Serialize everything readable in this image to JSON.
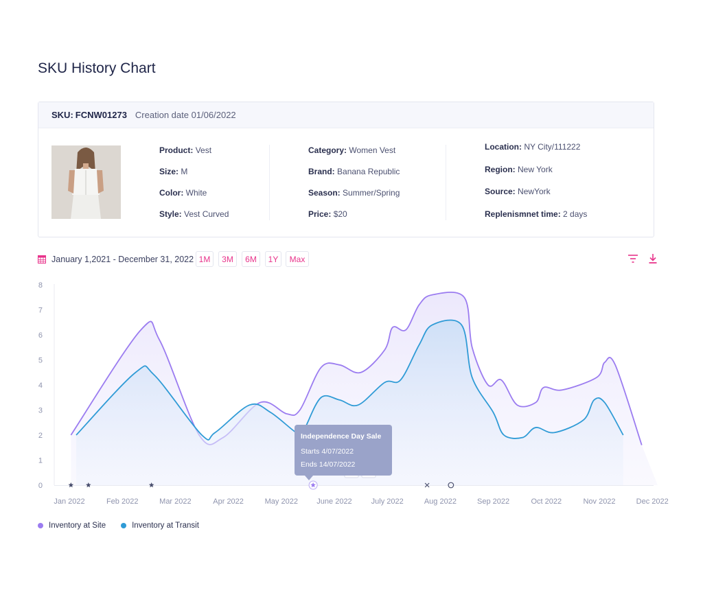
{
  "page": {
    "title": "SKU History Chart"
  },
  "sku": {
    "code_label": "SKU:",
    "code": "FCNW01273",
    "creation": "Creation date 01/06/2022",
    "details": {
      "col1": [
        {
          "label": "Product:",
          "value": "Vest"
        },
        {
          "label": "Size:",
          "value": "M"
        },
        {
          "label": "Color:",
          "value": "White"
        },
        {
          "label": "Style:",
          "value": "Vest Curved"
        }
      ],
      "col2": [
        {
          "label": "Category:",
          "value": "Women Vest"
        },
        {
          "label": "Brand:",
          "value": "Banana Republic"
        },
        {
          "label": "Season:",
          "value": "Summer/Spring"
        },
        {
          "label": "Price:",
          "value": "$20"
        }
      ],
      "col3": [
        {
          "label": "Location:",
          "value": "NY City/111222"
        },
        {
          "label": "Region:",
          "value": "New York"
        },
        {
          "label": "Source:",
          "value": "NewYork"
        },
        {
          "label": "Replenismnet time:",
          "value": "2 days"
        }
      ]
    }
  },
  "toolbar": {
    "date_range": "January 1,2021 - December 31, 2022",
    "ranges": [
      "1M",
      "3M",
      "6M",
      "1Y",
      "Max"
    ],
    "icons": {
      "calendar": "calendar-icon",
      "filter": "filter-icon",
      "download": "download-icon"
    }
  },
  "colors": {
    "site": "#9b7cf0",
    "transit": "#2f9bd6",
    "accent": "#e8338b",
    "tooltip_bg": "#9aa3c9"
  },
  "chart_data": {
    "type": "area",
    "x_ticks": [
      "Jan 2022",
      "Feb 2022",
      "Mar 2022",
      "Apr 2022",
      "May 2022",
      "June 2022",
      "July 2022",
      "Aug 2022",
      "Sep 2022",
      "Oct 2022",
      "Nov 2022",
      "Dec 2022"
    ],
    "y_ticks": [
      0,
      1,
      2,
      3,
      4,
      5,
      6,
      7,
      8
    ],
    "ylim": [
      0,
      8
    ],
    "series": [
      {
        "name": "Inventory at Site",
        "points": [
          [
            0.03,
            2.0
          ],
          [
            1.35,
            6.2
          ],
          [
            1.7,
            5.8
          ],
          [
            2.45,
            2.0
          ],
          [
            2.9,
            1.9
          ],
          [
            3.6,
            3.3
          ],
          [
            4.1,
            2.85
          ],
          [
            4.35,
            3.0
          ],
          [
            4.75,
            4.7
          ],
          [
            5.1,
            4.8
          ],
          [
            5.5,
            4.5
          ],
          [
            5.95,
            5.4
          ],
          [
            6.1,
            6.3
          ],
          [
            6.35,
            6.2
          ],
          [
            6.6,
            7.2
          ],
          [
            6.85,
            7.6
          ],
          [
            7.45,
            7.5
          ],
          [
            7.6,
            5.5
          ],
          [
            7.9,
            4.0
          ],
          [
            8.15,
            4.2
          ],
          [
            8.45,
            3.2
          ],
          [
            8.8,
            3.3
          ],
          [
            8.95,
            3.9
          ],
          [
            9.3,
            3.8
          ],
          [
            9.95,
            4.3
          ],
          [
            10.1,
            4.9
          ],
          [
            10.3,
            4.8
          ],
          [
            10.8,
            1.6
          ]
        ]
      },
      {
        "name": "Inventory at Transit",
        "points": [
          [
            0.13,
            2.0
          ],
          [
            1.25,
            4.5
          ],
          [
            1.6,
            4.4
          ],
          [
            2.5,
            2.0
          ],
          [
            2.75,
            2.1
          ],
          [
            3.4,
            3.2
          ],
          [
            3.8,
            2.9
          ],
          [
            4.35,
            2.0
          ],
          [
            4.45,
            2.3
          ],
          [
            4.75,
            3.5
          ],
          [
            5.1,
            3.4
          ],
          [
            5.45,
            3.2
          ],
          [
            5.95,
            4.1
          ],
          [
            6.25,
            4.2
          ],
          [
            6.6,
            5.6
          ],
          [
            6.85,
            6.4
          ],
          [
            7.4,
            6.4
          ],
          [
            7.6,
            4.3
          ],
          [
            8.0,
            2.9
          ],
          [
            8.2,
            2.0
          ],
          [
            8.55,
            1.9
          ],
          [
            8.8,
            2.3
          ],
          [
            9.15,
            2.1
          ],
          [
            9.7,
            2.6
          ],
          [
            9.9,
            3.4
          ],
          [
            10.1,
            3.3
          ],
          [
            10.45,
            2.0
          ]
        ]
      }
    ],
    "events": [
      {
        "x": 0.03,
        "marker": "star"
      },
      {
        "x": 0.36,
        "marker": "star"
      },
      {
        "x": 1.55,
        "marker": "star"
      },
      {
        "x": 4.6,
        "marker": "star",
        "active": true
      },
      {
        "x": 6.75,
        "marker": "cross"
      },
      {
        "x": 7.2,
        "marker": "circle"
      }
    ],
    "tooltip": {
      "title": "Independence Day Sale",
      "line1": "Starts 4/07/2022",
      "line2": "Ends 14/07/2022"
    },
    "legend_position": "bottom-left",
    "grid": false
  }
}
